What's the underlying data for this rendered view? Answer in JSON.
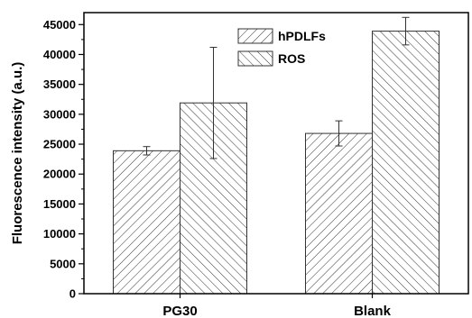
{
  "chart_data": {
    "type": "bar",
    "categories": [
      "PG30",
      "Blank"
    ],
    "series": [
      {
        "name": "hPDLFs",
        "values": [
          23900,
          26800
        ],
        "errors": [
          700,
          2100
        ],
        "pattern": "hatch-forward"
      },
      {
        "name": "ROS",
        "values": [
          31900,
          43900
        ],
        "errors": [
          9300,
          2300
        ],
        "pattern": "hatch-backward"
      }
    ],
    "ylabel": "Fluorescence intensity (a.u.)",
    "xlabel": "",
    "ylim": [
      0,
      47000
    ],
    "yticks": [
      "0",
      "5000",
      "10000",
      "15000",
      "20000",
      "25000",
      "30000",
      "35000",
      "40000",
      "45000"
    ],
    "grid": false,
    "legend_position": "top-center",
    "bar_stroke_color": "#333333"
  }
}
